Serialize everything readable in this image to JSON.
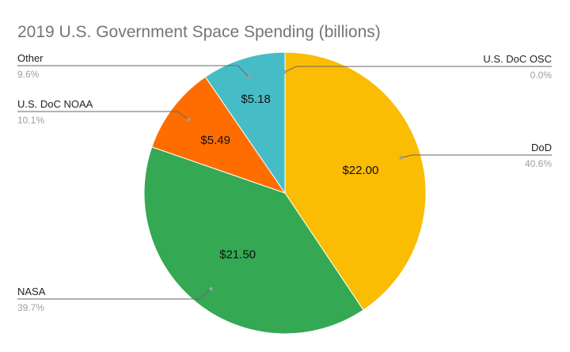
{
  "chart_data": {
    "type": "pie",
    "title": "2019 U.S. Government Space Spending (billions)",
    "slices": [
      {
        "label": "U.S. DoC OSC",
        "value": 0.0,
        "value_label": "",
        "percent_label": "0.0%",
        "color": "#4fb0c6"
      },
      {
        "label": "DoD",
        "value": 22.0,
        "value_label": "$22.00",
        "percent_label": "40.6%",
        "color": "#fbbc04"
      },
      {
        "label": "NASA",
        "value": 21.5,
        "value_label": "$21.50",
        "percent_label": "39.7%",
        "color": "#34a853"
      },
      {
        "label": "U.S. DoC NOAA",
        "value": 5.49,
        "value_label": "$5.49",
        "percent_label": "10.1%",
        "color": "#ff6d01"
      },
      {
        "label": "Other",
        "value": 5.18,
        "value_label": "$5.18",
        "percent_label": "9.6%",
        "color": "#46bdc6"
      }
    ],
    "legend": "callouts"
  }
}
